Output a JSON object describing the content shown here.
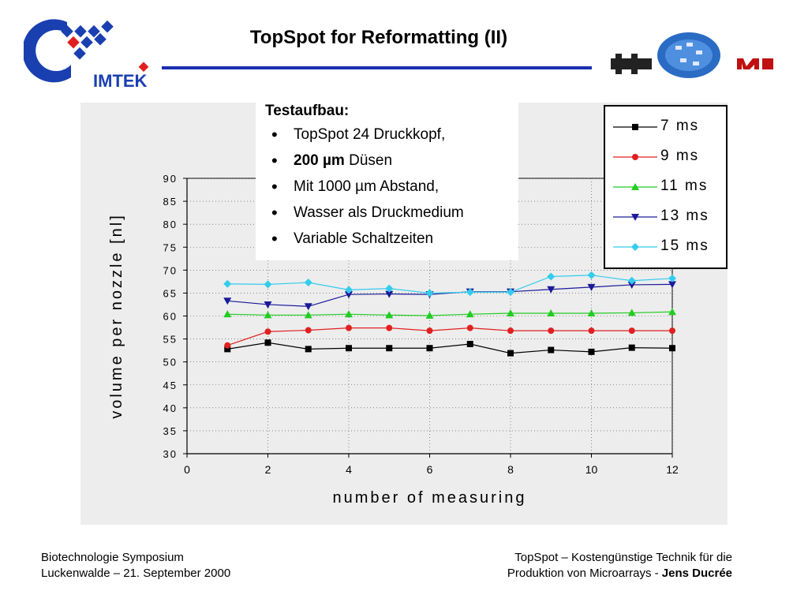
{
  "header": {
    "title": "TopSpot for Reformatting (II)",
    "logo_left_text": "IMTEK",
    "logo_left_name": "imtek-logo",
    "logo_right_name": "hsg-imit-logo"
  },
  "info_box": {
    "title": "Testaufbau:",
    "items": [
      {
        "pre": "",
        "bold": "",
        "text": "TopSpot 24 Druckkopf,"
      },
      {
        "pre": "",
        "bold": "200 µm",
        "text": " Düsen"
      },
      {
        "pre": "",
        "bold": "",
        "text": "Mit 1000 µm Abstand,"
      },
      {
        "pre": "",
        "bold": "",
        "text": "Wasser als Druckmedium"
      },
      {
        "pre": "",
        "bold": "",
        "text": "Variable Schaltzeiten"
      }
    ]
  },
  "footer": {
    "left_line1": "Biotechnologie Symposium",
    "left_line2": "Luckenwalde – 21. September 2000",
    "right_line1": "TopSpot – Kostengünstige Technik für die",
    "right_line2_pre": "Produktion von Microarrays - ",
    "right_line2_bold": "Jens Ducrée"
  },
  "chart_data": {
    "type": "line",
    "xlabel": "number of measuring",
    "ylabel": "volume per nozzle [nl]",
    "xlim": [
      0,
      12
    ],
    "ylim": [
      30,
      90
    ],
    "xticks": [
      0,
      2,
      4,
      6,
      8,
      10,
      12
    ],
    "yticks": [
      30,
      35,
      40,
      45,
      50,
      55,
      60,
      65,
      70,
      75,
      80,
      85,
      90
    ],
    "x": [
      1,
      2,
      3,
      4,
      5,
      6,
      7,
      8,
      9,
      10,
      11,
      12
    ],
    "legend_position": "top-right",
    "series": [
      {
        "name": "7 ms",
        "color": "#000000",
        "marker": "square",
        "values": [
          52.8,
          54.2,
          52.8,
          53.0,
          53.0,
          53.0,
          53.9,
          51.9,
          52.6,
          52.2,
          53.1,
          53.0
        ]
      },
      {
        "name": "9 ms",
        "color": "#e02020",
        "marker": "circle",
        "values": [
          53.6,
          56.6,
          56.9,
          57.4,
          57.4,
          56.8,
          57.4,
          56.8,
          56.8,
          56.8,
          56.8,
          56.8
        ]
      },
      {
        "name": "11 ms",
        "color": "#22cc22",
        "marker": "triangle-up",
        "values": [
          60.4,
          60.2,
          60.2,
          60.4,
          60.2,
          60.1,
          60.4,
          60.6,
          60.6,
          60.6,
          60.7,
          60.9
        ]
      },
      {
        "name": "13 ms",
        "color": "#1a1a9a",
        "marker": "triangle-down",
        "values": [
          63.3,
          62.5,
          62.1,
          64.7,
          64.8,
          64.7,
          65.3,
          65.3,
          65.8,
          66.3,
          66.8,
          66.9
        ]
      },
      {
        "name": "15 ms",
        "color": "#33ccee",
        "marker": "diamond",
        "values": [
          67.0,
          66.9,
          67.3,
          65.7,
          66.0,
          65.0,
          65.2,
          65.2,
          68.6,
          68.9,
          67.7,
          68.2
        ]
      }
    ]
  }
}
